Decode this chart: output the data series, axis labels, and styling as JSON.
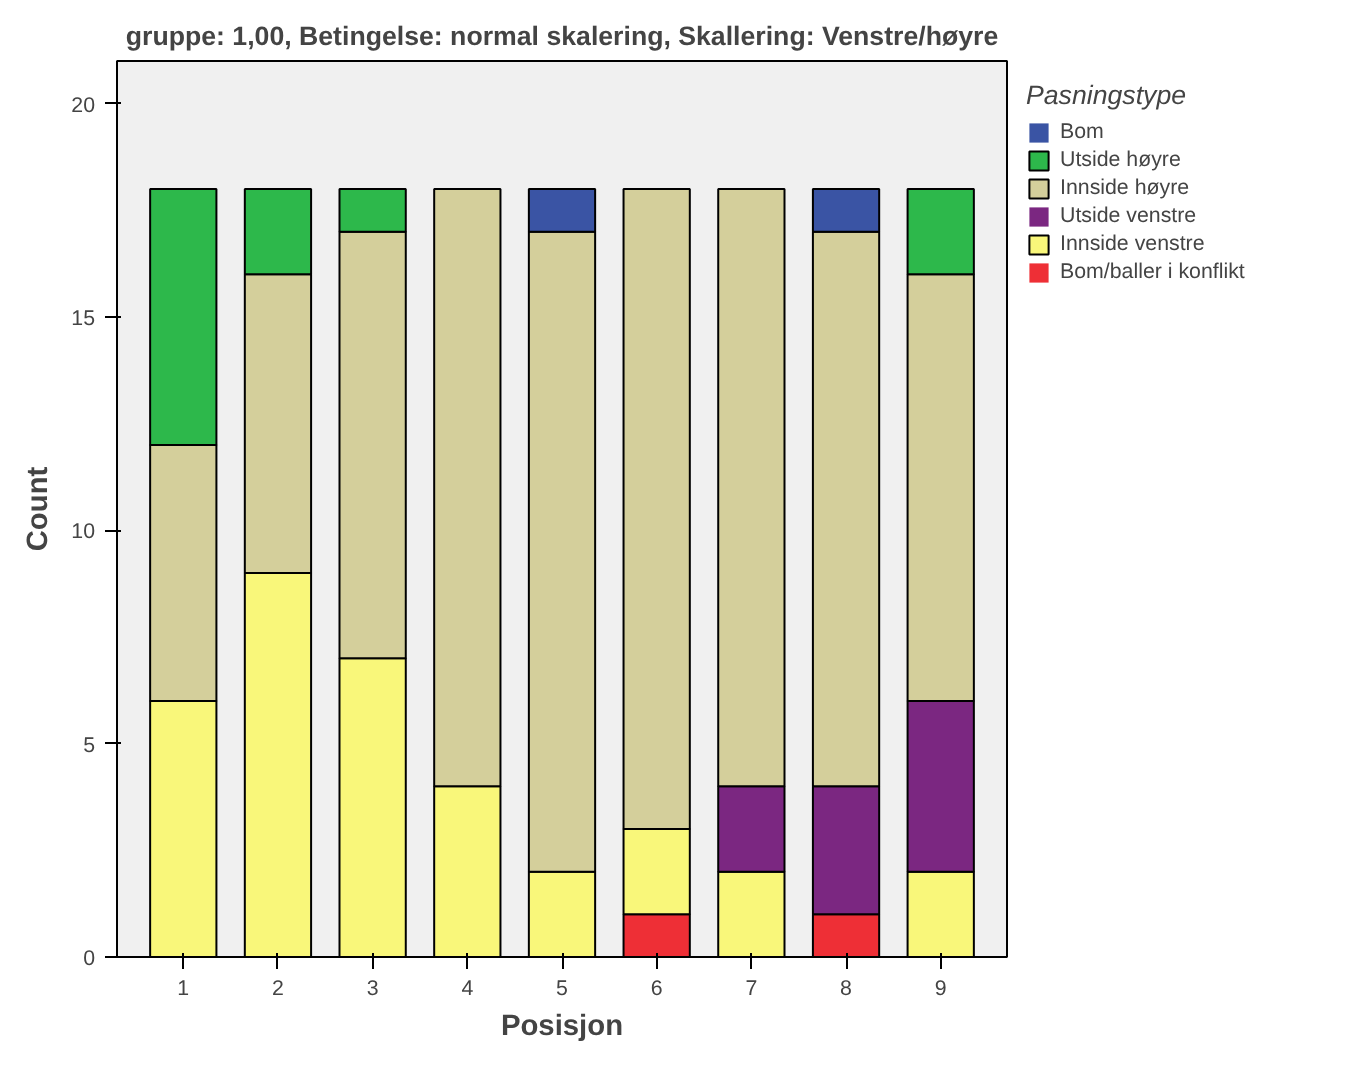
{
  "chart_data": {
    "type": "bar",
    "stacked": true,
    "title": "gruppe: 1,00, Betingelse: normal skalering, Skallering: Venstre/høyre",
    "xlabel": "Posisjon",
    "ylabel": "Count",
    "legend_title": "Pasningstype",
    "legend": "right",
    "grid": false,
    "categories": [
      "1",
      "2",
      "3",
      "4",
      "5",
      "6",
      "7",
      "8",
      "9"
    ],
    "ylim": [
      0,
      21
    ],
    "yticks": [
      0,
      5,
      10,
      15,
      20
    ],
    "series": [
      {
        "name": "Bom/baller i konflikt",
        "color": "#ee2f36",
        "values": [
          0,
          0,
          0,
          0,
          0,
          1,
          0,
          1,
          0
        ]
      },
      {
        "name": "Innside venstre",
        "color": "#f9f77a",
        "values": [
          6,
          9,
          7,
          4,
          2,
          2,
          2,
          0,
          2
        ]
      },
      {
        "name": "Utside venstre",
        "color": "#7b2781",
        "values": [
          0,
          0,
          0,
          0,
          0,
          0,
          2,
          3,
          4
        ]
      },
      {
        "name": "Innside høyre",
        "color": "#d4cf9b",
        "values": [
          6,
          7,
          10,
          14,
          15,
          15,
          14,
          13,
          10
        ]
      },
      {
        "name": "Utside høyre",
        "color": "#2db84b",
        "values": [
          6,
          2,
          1,
          0,
          0,
          0,
          0,
          0,
          2
        ]
      },
      {
        "name": "Bom",
        "color": "#3a54a4",
        "values": [
          0,
          0,
          0,
          0,
          1,
          0,
          0,
          1,
          0
        ]
      }
    ]
  }
}
